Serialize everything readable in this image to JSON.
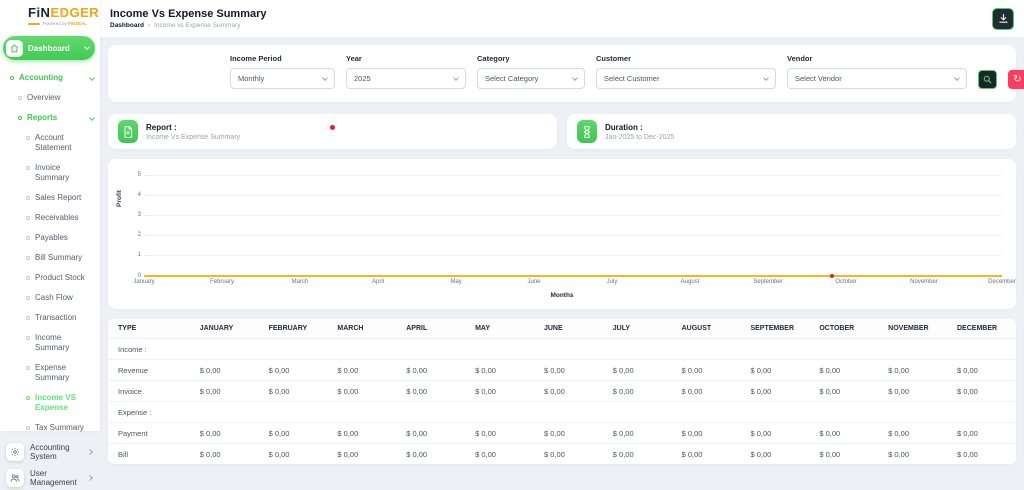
{
  "brand": {
    "name_primary": "FiN",
    "name_secondary": "EDGER",
    "tagline_prefix": "Powered by",
    "tagline_brand": "FINZEAL"
  },
  "header": {
    "title": "Income Vs Expense Summary",
    "breadcrumb_root": "Dashboard",
    "breadcrumb_separator": "›",
    "breadcrumb_current": "Income vs Expense Summary"
  },
  "sidebar": {
    "items": [
      {
        "label": "Dashboard",
        "type": "pill",
        "icon": "home-icon",
        "chevron": "down"
      },
      {
        "label": "Accounting",
        "level": 1,
        "green": true,
        "bullet": true,
        "chevron": "down"
      },
      {
        "label": "Overview",
        "level": 2,
        "bullet": true
      },
      {
        "label": "Reports",
        "level": 2,
        "green": true,
        "bullet": true,
        "chevron": "down"
      },
      {
        "label": "Account Statement",
        "level": 3,
        "bullet": true
      },
      {
        "label": "Invoice Summary",
        "level": 3,
        "bullet": true
      },
      {
        "label": "Sales Report",
        "level": 3,
        "bullet": true
      },
      {
        "label": "Receivables",
        "level": 3,
        "bullet": true
      },
      {
        "label": "Payables",
        "level": 3,
        "bullet": true
      },
      {
        "label": "Bill Summary",
        "level": 3,
        "bullet": true
      },
      {
        "label": "Product Stock",
        "level": 3,
        "bullet": true
      },
      {
        "label": "Cash Flow",
        "level": 3,
        "bullet": true
      },
      {
        "label": "Transaction",
        "level": 3,
        "bullet": true
      },
      {
        "label": "Income Summary",
        "level": 3,
        "bullet": true
      },
      {
        "label": "Expense Summary",
        "level": 3,
        "bullet": true
      },
      {
        "label": "Income VS Expense",
        "level": 3,
        "bullet": true,
        "active": true
      },
      {
        "label": "Tax Summary",
        "level": 3,
        "bullet": true
      },
      {
        "label": "Accounting System",
        "type": "section",
        "icon": "gear-icon",
        "chevron": "right"
      },
      {
        "label": "User Management",
        "type": "section",
        "icon": "users-icon",
        "chevron": "right"
      }
    ]
  },
  "filters": {
    "fields": [
      {
        "label": "Income Period",
        "value": "Monthly",
        "width": 105
      },
      {
        "label": "Year",
        "value": "2025",
        "width": 120
      },
      {
        "label": "Category",
        "value": "Select Category",
        "width": 108
      },
      {
        "label": "Customer",
        "value": "Select Customer",
        "width": 180
      },
      {
        "label": "Vendor",
        "value": "Select Vendor",
        "width": 180
      }
    ]
  },
  "cards": {
    "report": {
      "title": "Report :",
      "subtitle": "Income Vs Expense Summary"
    },
    "duration": {
      "title": "Duration :",
      "subtitle": "Jan-2025 to Dec-2025"
    }
  },
  "chart_data": {
    "type": "line",
    "x": [
      "January",
      "February",
      "March",
      "April",
      "May",
      "June",
      "July",
      "August",
      "September",
      "October",
      "November",
      "December"
    ],
    "series": [
      {
        "name": "Profit",
        "values": [
          0,
          0,
          0,
          0,
          0,
          0,
          0,
          0,
          0,
          0,
          0,
          0
        ],
        "color": "#f8b425"
      }
    ],
    "title": "",
    "xlabel": "Months",
    "ylabel": "Profit",
    "ylim": [
      0,
      5
    ],
    "yticks": [
      0,
      1,
      2,
      3,
      4,
      5
    ],
    "grid": "dotted-horizontal",
    "legend": "none"
  },
  "table": {
    "columns": [
      "TYPE",
      "JANUARY",
      "FEBRUARY",
      "MARCH",
      "APRIL",
      "MAY",
      "JUNE",
      "JULY",
      "AUGUST",
      "SEPTEMBER",
      "OCTOBER",
      "NOVEMBER",
      "DECEMBER"
    ],
    "rows": [
      {
        "type": "Income :",
        "section": true,
        "values": []
      },
      {
        "type": "Revenue",
        "section": false,
        "values": [
          "$ 0,00",
          "$ 0,00",
          "$ 0,00",
          "$ 0,00",
          "$ 0,00",
          "$ 0,00",
          "$ 0,00",
          "$ 0,00",
          "$ 0,00",
          "$ 0,00",
          "$ 0,00",
          "$ 0,00"
        ]
      },
      {
        "type": "Invoice",
        "section": false,
        "values": [
          "$ 0,00",
          "$ 0,00",
          "$ 0,00",
          "$ 0,00",
          "$ 0,00",
          "$ 0,00",
          "$ 0,00",
          "$ 0,00",
          "$ 0,00",
          "$ 0,00",
          "$ 0,00",
          "$ 0,00"
        ]
      },
      {
        "type": "Expense :",
        "section": true,
        "values": []
      },
      {
        "type": "Payment",
        "section": false,
        "values": [
          "$ 0,00",
          "$ 0,00",
          "$ 0,00",
          "$ 0,00",
          "$ 0,00",
          "$ 0,00",
          "$ 0,00",
          "$ 0,00",
          "$ 0,00",
          "$ 0,00",
          "$ 0,00",
          "$ 0,00"
        ]
      },
      {
        "type": "Bill",
        "section": false,
        "values": [
          "$ 0,00",
          "$ 0,00",
          "$ 0,00",
          "$ 0,00",
          "$ 0,00",
          "$ 0,00",
          "$ 0,00",
          "$ 0,00",
          "$ 0,00",
          "$ 0,00",
          "$ 0,00",
          "$ 0,00"
        ]
      }
    ]
  },
  "colors": {
    "accent_green": "#4cd05c",
    "active_sidebar_green": "#62e47c",
    "brand_orange": "#f2a819",
    "chart_line_orange": "#f8b425",
    "reset_pink": "#fd3c61",
    "dark_button": "#232b35",
    "marker_red": "#e11d2e",
    "background": "#edf0f5"
  }
}
